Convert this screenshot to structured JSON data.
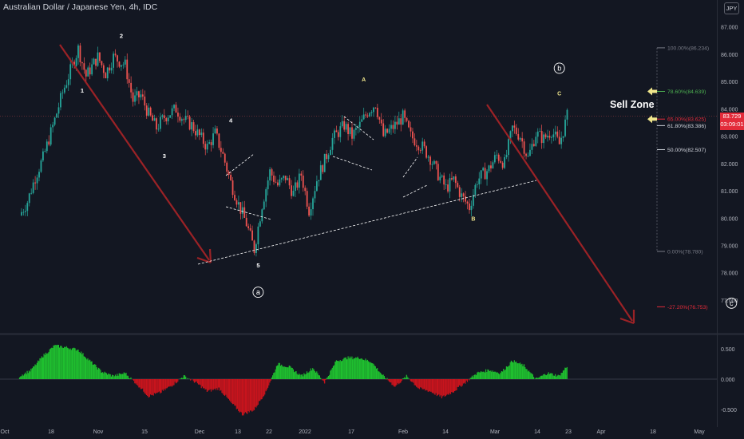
{
  "chart_title": "Australian Dollar / Japanese Yen, 4h, IDC",
  "currency_button": "JPY",
  "price_label": {
    "price": "83.729",
    "countdown": "03:09:01"
  },
  "sell_zone_label": "Sell Zone",
  "colors": {
    "background": "#131722",
    "up": "#26a69a",
    "down": "#ef5350",
    "arrow": "#9b2226",
    "osc_pos": "#1fbf2f",
    "osc_neg": "#c8141d",
    "fib_accent": "#f0e68c"
  },
  "chart_data": [
    {
      "type": "candlestick",
      "title": "Australian Dollar / Japanese Yen, 4h, IDC",
      "ylim": [
        75.8,
        87.4
      ],
      "y_ticks": [
        "87.000",
        "86.000",
        "85.000",
        "84.000",
        "83.000",
        "82.000",
        "81.000",
        "80.000",
        "79.000",
        "78.000",
        "77.000"
      ],
      "x_ticks": [
        "Oct",
        "18",
        "Nov",
        "15",
        "Dec",
        "13",
        "22",
        "2022",
        "17",
        "Feb",
        "14",
        "Mar",
        "14",
        "23",
        "Apr",
        "18",
        "May"
      ],
      "current_price": 83.729,
      "price_path": [
        {
          "d": "Oct 06",
          "p": 80.1
        },
        {
          "d": "Oct 08",
          "p": 80.6
        },
        {
          "d": "Oct 10",
          "p": 81.5
        },
        {
          "d": "Oct 12",
          "p": 82.2
        },
        {
          "d": "Oct 15",
          "p": 83.6
        },
        {
          "d": "Oct 17",
          "p": 84.6
        },
        {
          "d": "Oct 19",
          "p": 85.4
        },
        {
          "d": "Oct 21",
          "p": 86.2
        },
        {
          "d": "Oct 23",
          "p": 85.2
        },
        {
          "d": "Oct 26",
          "p": 85.9
        },
        {
          "d": "Oct 28",
          "p": 85.3
        },
        {
          "d": "Oct 30",
          "p": 85.9
        },
        {
          "d": "Nov 02",
          "p": 85.6
        },
        {
          "d": "Nov 04",
          "p": 84.3
        },
        {
          "d": "Nov 06",
          "p": 84.5
        },
        {
          "d": "Nov 08",
          "p": 83.8
        },
        {
          "d": "Nov 10",
          "p": 83.3
        },
        {
          "d": "Nov 12",
          "p": 83.7
        },
        {
          "d": "Nov 15",
          "p": 84.0
        },
        {
          "d": "Nov 17",
          "p": 83.6
        },
        {
          "d": "Nov 19",
          "p": 83.4
        },
        {
          "d": "Nov 21",
          "p": 83.0
        },
        {
          "d": "Nov 23",
          "p": 82.6
        },
        {
          "d": "Nov 25",
          "p": 83.1
        },
        {
          "d": "Nov 27",
          "p": 82.3
        },
        {
          "d": "Nov 29",
          "p": 81.3
        },
        {
          "d": "Dec 01",
          "p": 80.5
        },
        {
          "d": "Dec 03",
          "p": 79.8
        },
        {
          "d": "Dec 05",
          "p": 78.85
        },
        {
          "d": "Dec 07",
          "p": 80.5
        },
        {
          "d": "Dec 09",
          "p": 81.7
        },
        {
          "d": "Dec 11",
          "p": 81.2
        },
        {
          "d": "Dec 13",
          "p": 81.5
        },
        {
          "d": "Dec 15",
          "p": 80.9
        },
        {
          "d": "Dec 17",
          "p": 81.6
        },
        {
          "d": "Dec 19",
          "p": 80.3
        },
        {
          "d": "Dec 21",
          "p": 81.4
        },
        {
          "d": "Dec 23",
          "p": 82.1
        },
        {
          "d": "Dec 25",
          "p": 82.9
        },
        {
          "d": "Dec 28",
          "p": 83.4
        },
        {
          "d": "Dec 30",
          "p": 83.0
        },
        {
          "d": "Jan 01",
          "p": 83.4
        },
        {
          "d": "Jan 03",
          "p": 83.9
        },
        {
          "d": "Jan 05",
          "p": 84.2
        },
        {
          "d": "Jan 07",
          "p": 83.0
        },
        {
          "d": "Jan 10",
          "p": 83.4
        },
        {
          "d": "Jan 12",
          "p": 83.7
        },
        {
          "d": "Jan 14",
          "p": 83.0
        },
        {
          "d": "Jan 17",
          "p": 82.6
        },
        {
          "d": "Jan 19",
          "p": 82.2
        },
        {
          "d": "Jan 21",
          "p": 81.6
        },
        {
          "d": "Jan 23",
          "p": 81.1
        },
        {
          "d": "Jan 25",
          "p": 81.4
        },
        {
          "d": "Jan 27",
          "p": 80.8
        },
        {
          "d": "Jan 29",
          "p": 80.4
        },
        {
          "d": "Jan 31",
          "p": 81.4
        },
        {
          "d": "Feb 03",
          "p": 81.8
        },
        {
          "d": "Feb 05",
          "p": 82.3
        },
        {
          "d": "Feb 07",
          "p": 82.0
        },
        {
          "d": "Feb 09",
          "p": 83.3
        },
        {
          "d": "Feb 11",
          "p": 83.0
        },
        {
          "d": "Feb 13",
          "p": 82.2
        },
        {
          "d": "Feb 15",
          "p": 83.1
        },
        {
          "d": "Feb 17",
          "p": 82.9
        },
        {
          "d": "Feb 19",
          "p": 83.2
        },
        {
          "d": "Feb 21",
          "p": 82.7
        },
        {
          "d": "Feb 23",
          "p": 83.729
        }
      ],
      "fibonacci_levels": [
        {
          "ratio": "100.00%",
          "price": 86.234
        },
        {
          "ratio": "78.60%",
          "price": 84.639
        },
        {
          "ratio": "65.00%",
          "price": 83.625
        },
        {
          "ratio": "61.80%",
          "price": 83.386
        },
        {
          "ratio": "50.00%",
          "price": 82.507
        },
        {
          "ratio": "0.00%",
          "price": 78.78
        },
        {
          "ratio": "-27.20%",
          "price": 76.753
        }
      ],
      "wave_labels": [
        {
          "text": "1",
          "d": "Oct 22",
          "p": 84.6
        },
        {
          "text": "2",
          "d": "Nov 01",
          "p": 86.6
        },
        {
          "text": "3",
          "d": "Nov 12",
          "p": 82.2
        },
        {
          "text": "4",
          "d": "Nov 29",
          "p": 83.5
        },
        {
          "text": "5",
          "d": "Dec 06",
          "p": 78.2
        },
        {
          "text": "a",
          "d": "Dec 06",
          "p": 77.2
        },
        {
          "text": "A",
          "d": "Jan 02",
          "p": 85.0
        },
        {
          "text": "B",
          "d": "Jan 30",
          "p": 79.9
        },
        {
          "text": "b",
          "d": "Feb 21",
          "p": 85.4
        },
        {
          "text": "C",
          "d": "Feb 21",
          "p": 84.5
        },
        {
          "text": "c",
          "d": "Apr 06",
          "p": 76.8
        }
      ]
    },
    {
      "type": "area",
      "title": "",
      "ylim": [
        -0.72,
        0.72
      ],
      "y_ticks": [
        "0.500",
        "0.000",
        "-0.500"
      ],
      "oscillator": [
        {
          "d": "Oct 06",
          "v": 0.05
        },
        {
          "d": "Oct 09",
          "v": 0.15
        },
        {
          "d": "Oct 12",
          "v": 0.38
        },
        {
          "d": "Oct 15",
          "v": 0.55
        },
        {
          "d": "Oct 18",
          "v": 0.52
        },
        {
          "d": "Oct 21",
          "v": 0.48
        },
        {
          "d": "Oct 24",
          "v": 0.3
        },
        {
          "d": "Oct 27",
          "v": 0.12
        },
        {
          "d": "Oct 30",
          "v": 0.05
        },
        {
          "d": "Nov 02",
          "v": 0.1
        },
        {
          "d": "Nov 05",
          "v": -0.08
        },
        {
          "d": "Nov 08",
          "v": -0.28
        },
        {
          "d": "Nov 11",
          "v": -0.22
        },
        {
          "d": "Nov 14",
          "v": -0.1
        },
        {
          "d": "Nov 17",
          "v": 0.05
        },
        {
          "d": "Nov 20",
          "v": -0.05
        },
        {
          "d": "Nov 23",
          "v": -0.2
        },
        {
          "d": "Nov 26",
          "v": -0.15
        },
        {
          "d": "Nov 29",
          "v": -0.38
        },
        {
          "d": "Dec 02",
          "v": -0.58
        },
        {
          "d": "Dec 05",
          "v": -0.5
        },
        {
          "d": "Dec 08",
          "v": -0.2
        },
        {
          "d": "Dec 11",
          "v": 0.25
        },
        {
          "d": "Dec 14",
          "v": 0.2
        },
        {
          "d": "Dec 17",
          "v": 0.05
        },
        {
          "d": "Dec 20",
          "v": 0.18
        },
        {
          "d": "Dec 23",
          "v": -0.05
        },
        {
          "d": "Dec 26",
          "v": 0.3
        },
        {
          "d": "Dec 29",
          "v": 0.35
        },
        {
          "d": "Jan 01",
          "v": 0.35
        },
        {
          "d": "Jan 04",
          "v": 0.28
        },
        {
          "d": "Jan 07",
          "v": 0.05
        },
        {
          "d": "Jan 10",
          "v": -0.12
        },
        {
          "d": "Jan 13",
          "v": 0.05
        },
        {
          "d": "Jan 16",
          "v": -0.15
        },
        {
          "d": "Jan 19",
          "v": -0.2
        },
        {
          "d": "Jan 22",
          "v": -0.3
        },
        {
          "d": "Jan 25",
          "v": -0.2
        },
        {
          "d": "Jan 28",
          "v": -0.05
        },
        {
          "d": "Jan 31",
          "v": 0.1
        },
        {
          "d": "Feb 03",
          "v": 0.15
        },
        {
          "d": "Feb 06",
          "v": 0.1
        },
        {
          "d": "Feb 09",
          "v": 0.3
        },
        {
          "d": "Feb 12",
          "v": 0.22
        },
        {
          "d": "Feb 15",
          "v": 0.0
        },
        {
          "d": "Feb 18",
          "v": 0.1
        },
        {
          "d": "Feb 21",
          "v": 0.05
        },
        {
          "d": "Feb 23",
          "v": 0.22
        }
      ]
    }
  ]
}
